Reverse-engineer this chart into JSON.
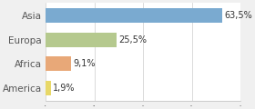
{
  "categories": [
    "Asia",
    "Europa",
    "Africa",
    "America"
  ],
  "values": [
    63.5,
    25.5,
    9.1,
    1.9
  ],
  "labels": [
    "63,5%",
    "25,5%",
    "9,1%",
    "1,9%"
  ],
  "bar_colors": [
    "#7aaad0",
    "#b5c98e",
    "#e8a878",
    "#e8d868"
  ],
  "background_color": "#f0f0f0",
  "plot_background": "#ffffff",
  "xlim": [
    0,
    70
  ],
  "xticks": [
    0,
    17.5,
    35,
    52.5,
    70
  ],
  "figsize": [
    2.8,
    1.2
  ],
  "dpi": 100,
  "bar_height": 0.6,
  "label_fontsize": 7,
  "ytick_fontsize": 7.5
}
